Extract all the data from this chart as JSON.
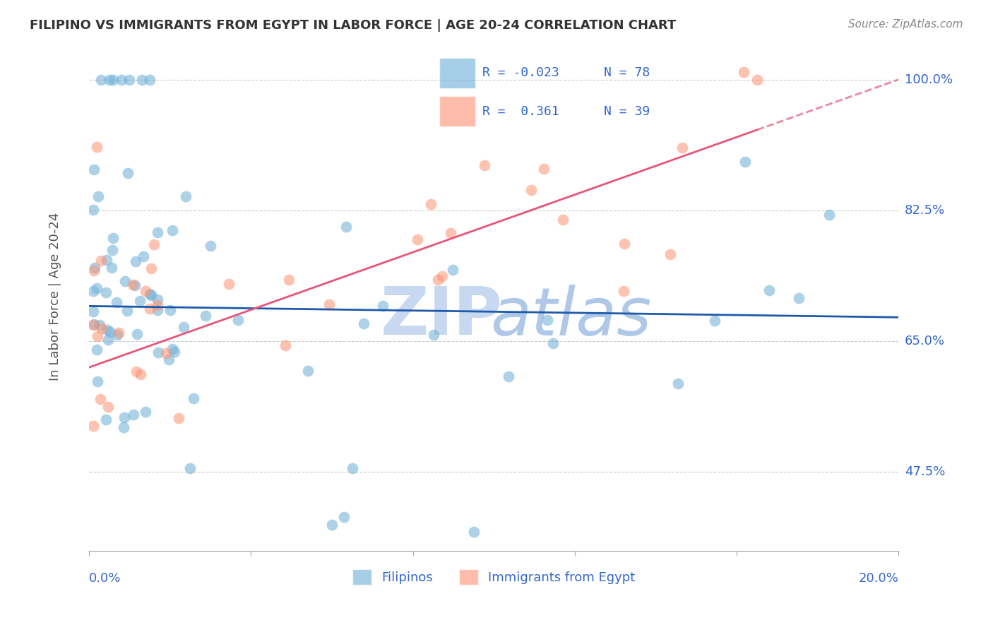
{
  "title": "FILIPINO VS IMMIGRANTS FROM EGYPT IN LABOR FORCE | AGE 20-24 CORRELATION CHART",
  "source": "Source: ZipAtlas.com",
  "ylabel": "In Labor Force | Age 20-24",
  "ytick_labels": [
    "100.0%",
    "82.5%",
    "65.0%",
    "47.5%"
  ],
  "ytick_values": [
    1.0,
    0.825,
    0.65,
    0.475
  ],
  "xmin": 0.0,
  "xmax": 0.2,
  "ymin": 0.37,
  "ymax": 1.05,
  "blue_color": "#6baed6",
  "pink_color": "#fc9272",
  "line_blue": "#1f5aa8",
  "line_pink": "#e8547a",
  "label_color": "#3366cc",
  "watermark_zip_color": "#c8d8f0",
  "watermark_atlas_color": "#b0c8e8"
}
